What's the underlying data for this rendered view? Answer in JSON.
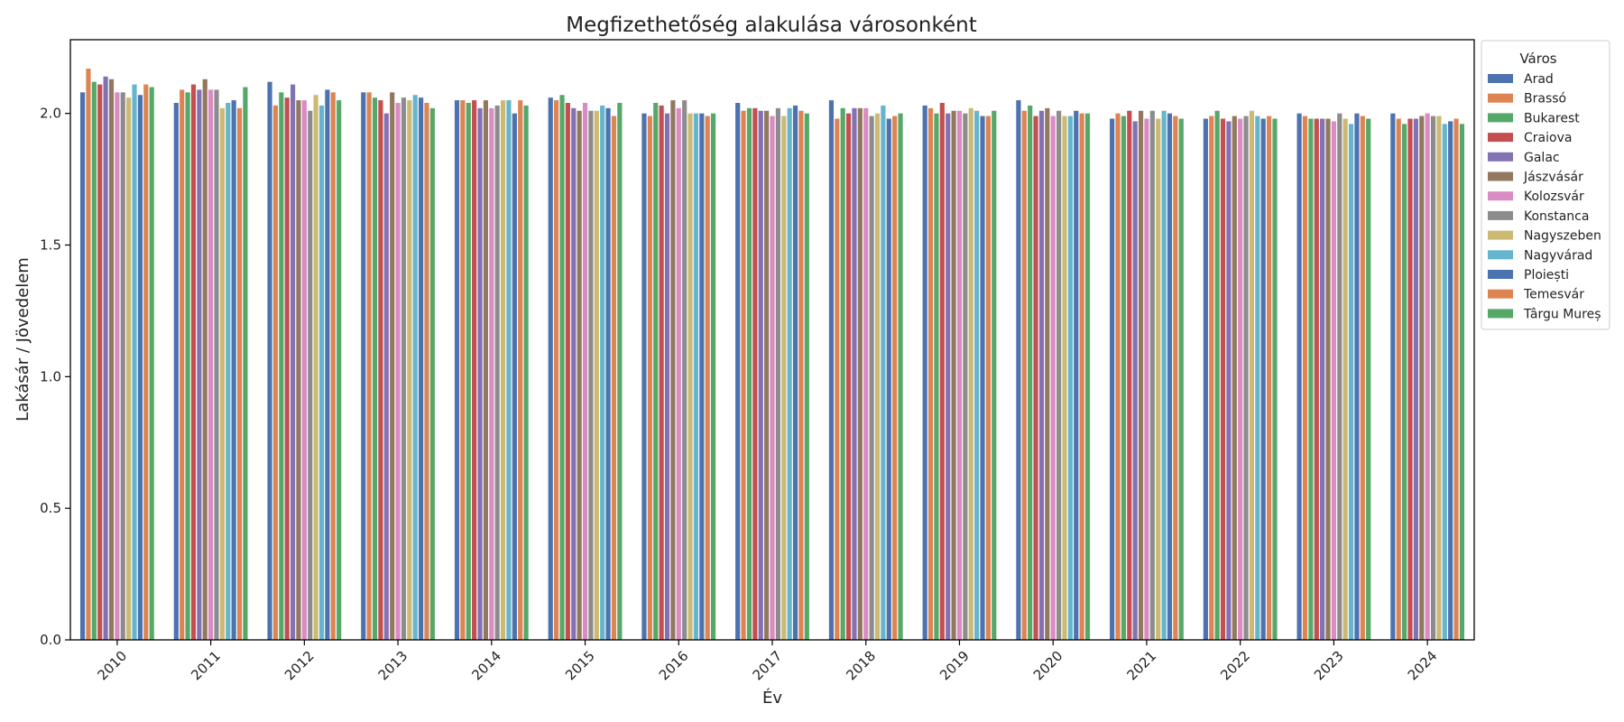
{
  "chart_data": {
    "type": "bar",
    "title": "Megfizethetőség alakulása városonként",
    "xlabel": "Év",
    "ylabel": "Lakásár / Jövedelem",
    "ylim": [
      0,
      2.28
    ],
    "yticks": [
      "0.0",
      "0.5",
      "1.0",
      "1.5",
      "2.0"
    ],
    "grid": false,
    "legend_title": "Város",
    "legend_position": "top-right (outside plot)",
    "categories": [
      "2010",
      "2011",
      "2012",
      "2013",
      "2014",
      "2015",
      "2016",
      "2017",
      "2018",
      "2019",
      "2020",
      "2021",
      "2022",
      "2023",
      "2024"
    ],
    "series": [
      {
        "name": "Arad",
        "color": "#4c72b0",
        "values": [
          2.08,
          2.04,
          2.12,
          2.08,
          2.05,
          2.06,
          2.0,
          2.04,
          2.05,
          2.03,
          2.05,
          1.98,
          1.98,
          2.0,
          2.0
        ]
      },
      {
        "name": "Brassó",
        "color": "#dd8452",
        "values": [
          2.17,
          2.09,
          2.03,
          2.08,
          2.05,
          2.05,
          1.99,
          2.01,
          1.98,
          2.02,
          2.01,
          2.0,
          1.99,
          1.99,
          1.98
        ]
      },
      {
        "name": "Bukarest",
        "color": "#55a868",
        "values": [
          2.12,
          2.08,
          2.08,
          2.06,
          2.04,
          2.07,
          2.04,
          2.02,
          2.02,
          2.0,
          2.03,
          1.99,
          2.01,
          1.98,
          1.96
        ]
      },
      {
        "name": "Craiova",
        "color": "#c44e52",
        "values": [
          2.11,
          2.11,
          2.06,
          2.05,
          2.05,
          2.04,
          2.03,
          2.02,
          2.0,
          2.04,
          1.99,
          2.01,
          1.98,
          1.98,
          1.98
        ]
      },
      {
        "name": "Galac",
        "color": "#8172b3",
        "values": [
          2.14,
          2.09,
          2.11,
          2.0,
          2.02,
          2.02,
          2.0,
          2.01,
          2.02,
          2.0,
          2.01,
          1.97,
          1.97,
          1.98,
          1.98
        ]
      },
      {
        "name": "Jászvásár",
        "color": "#937860",
        "values": [
          2.13,
          2.13,
          2.05,
          2.08,
          2.05,
          2.01,
          2.05,
          2.01,
          2.02,
          2.01,
          2.02,
          2.01,
          1.99,
          1.98,
          1.99
        ]
      },
      {
        "name": "Kolozsvár",
        "color": "#da8bc3",
        "values": [
          2.08,
          2.09,
          2.05,
          2.04,
          2.02,
          2.04,
          2.02,
          1.99,
          2.02,
          2.01,
          1.99,
          1.98,
          1.98,
          1.97,
          2.0
        ]
      },
      {
        "name": "Konstanca",
        "color": "#8c8c8c",
        "values": [
          2.08,
          2.09,
          2.01,
          2.06,
          2.03,
          2.01,
          2.05,
          2.02,
          1.99,
          2.0,
          2.01,
          2.01,
          1.99,
          2.0,
          1.99
        ]
      },
      {
        "name": "Nagyszeben",
        "color": "#ccb974",
        "values": [
          2.06,
          2.02,
          2.07,
          2.05,
          2.05,
          2.01,
          2.0,
          1.99,
          2.0,
          2.02,
          1.99,
          1.98,
          2.01,
          1.98,
          1.99
        ]
      },
      {
        "name": "Nagyvárad",
        "color": "#64b5cd",
        "values": [
          2.11,
          2.04,
          2.03,
          2.07,
          2.05,
          2.03,
          2.0,
          2.02,
          2.03,
          2.01,
          1.99,
          2.01,
          1.99,
          1.96,
          1.96
        ]
      },
      {
        "name": "Ploiești",
        "color": "#4c72b0",
        "values": [
          2.07,
          2.05,
          2.09,
          2.06,
          2.0,
          2.02,
          2.0,
          2.03,
          1.98,
          1.99,
          2.01,
          2.0,
          1.98,
          2.0,
          1.97
        ]
      },
      {
        "name": "Temesvár",
        "color": "#dd8452",
        "values": [
          2.11,
          2.02,
          2.08,
          2.04,
          2.05,
          1.99,
          1.99,
          2.01,
          1.99,
          1.99,
          2.0,
          1.99,
          1.99,
          1.99,
          1.98
        ]
      },
      {
        "name": "Târgu Mureș",
        "color": "#55a868",
        "values": [
          2.1,
          2.1,
          2.05,
          2.02,
          2.03,
          2.04,
          2.0,
          2.0,
          2.0,
          2.01,
          2.0,
          1.98,
          1.98,
          1.98,
          1.96
        ]
      }
    ]
  }
}
